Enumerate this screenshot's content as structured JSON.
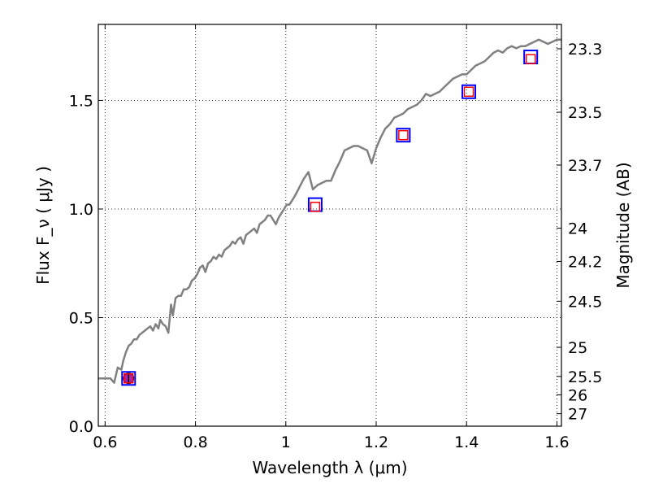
{
  "chart_data": {
    "type": "line",
    "xlabel": "Wavelength  λ (μm)",
    "ylabel": "Flux  F_ν  ( μJy )",
    "y2label": "Magnitude (AB)",
    "xlim": [
      0.585,
      1.61
    ],
    "ylim": [
      0.0,
      1.85
    ],
    "grid": true,
    "x_ticks": [
      0.6,
      0.8,
      1.0,
      1.2,
      1.4,
      1.6
    ],
    "x_tick_labels": [
      "0.6",
      "0.8",
      "1",
      "1.2",
      "1.4",
      "1.6"
    ],
    "y_ticks": [
      0.0,
      0.5,
      1.0,
      1.5
    ],
    "y_tick_labels": [
      "0.0",
      "0.5",
      "1.0",
      "1.5"
    ],
    "y2_ticks": [
      23.3,
      23.5,
      23.7,
      24,
      24.2,
      24.5,
      25,
      25.5,
      26,
      27
    ],
    "y2_tick_labels": [
      "23.3",
      "23.5",
      "23.7",
      "24",
      "24.2",
      "24.5",
      "25",
      "25.5",
      "26",
      "27"
    ],
    "colors": {
      "model": "#808080",
      "model_photometry": "#ff0000",
      "observed": "#0000ff",
      "detection_fill": "#aa22aa"
    },
    "series": [
      {
        "type": "line",
        "x": [
          0.585,
          0.6,
          0.612,
          0.62,
          0.628,
          0.636,
          0.64,
          0.646,
          0.652,
          0.658,
          0.664,
          0.67,
          0.676,
          0.682,
          0.688,
          0.694,
          0.7,
          0.706,
          0.712,
          0.718,
          0.722,
          0.728,
          0.734,
          0.74,
          0.746,
          0.75,
          0.756,
          0.762,
          0.768,
          0.774,
          0.78,
          0.786,
          0.792,
          0.798,
          0.804,
          0.81,
          0.816,
          0.822,
          0.828,
          0.834,
          0.84,
          0.846,
          0.852,
          0.858,
          0.864,
          0.87,
          0.876,
          0.882,
          0.888,
          0.894,
          0.9,
          0.906,
          0.912,
          0.918,
          0.924,
          0.93,
          0.936,
          0.942,
          0.948,
          0.954,
          0.96,
          0.966,
          0.972,
          0.978,
          0.984,
          0.99,
          0.996,
          1.002,
          1.008,
          1.014,
          1.02,
          1.03,
          1.04,
          1.05,
          1.06,
          1.07,
          1.08,
          1.09,
          1.1,
          1.11,
          1.12,
          1.13,
          1.14,
          1.15,
          1.16,
          1.17,
          1.18,
          1.19,
          1.2,
          1.21,
          1.22,
          1.23,
          1.24,
          1.25,
          1.26,
          1.27,
          1.28,
          1.29,
          1.3,
          1.31,
          1.32,
          1.33,
          1.34,
          1.35,
          1.36,
          1.37,
          1.38,
          1.39,
          1.4,
          1.41,
          1.42,
          1.43,
          1.44,
          1.45,
          1.46,
          1.47,
          1.48,
          1.49,
          1.5,
          1.51,
          1.52,
          1.53,
          1.54,
          1.55,
          1.56,
          1.57,
          1.58,
          1.59,
          1.6,
          1.61
        ],
        "y": [
          0.22,
          0.22,
          0.22,
          0.2,
          0.27,
          0.26,
          0.3,
          0.34,
          0.37,
          0.38,
          0.4,
          0.4,
          0.42,
          0.43,
          0.44,
          0.45,
          0.46,
          0.44,
          0.47,
          0.45,
          0.49,
          0.47,
          0.46,
          0.43,
          0.56,
          0.51,
          0.59,
          0.6,
          0.6,
          0.63,
          0.63,
          0.64,
          0.67,
          0.68,
          0.7,
          0.73,
          0.74,
          0.71,
          0.75,
          0.76,
          0.78,
          0.77,
          0.79,
          0.78,
          0.81,
          0.82,
          0.83,
          0.85,
          0.84,
          0.86,
          0.87,
          0.84,
          0.88,
          0.89,
          0.9,
          0.91,
          0.89,
          0.93,
          0.94,
          0.95,
          0.97,
          0.97,
          0.95,
          0.93,
          0.96,
          0.98,
          1.0,
          1.02,
          1.02,
          1.04,
          1.06,
          1.1,
          1.14,
          1.17,
          1.09,
          1.11,
          1.12,
          1.13,
          1.13,
          1.18,
          1.22,
          1.27,
          1.28,
          1.29,
          1.29,
          1.28,
          1.27,
          1.21,
          1.28,
          1.33,
          1.37,
          1.39,
          1.42,
          1.43,
          1.44,
          1.46,
          1.47,
          1.48,
          1.5,
          1.53,
          1.52,
          1.53,
          1.54,
          1.56,
          1.58,
          1.6,
          1.61,
          1.62,
          1.62,
          1.64,
          1.66,
          1.67,
          1.68,
          1.7,
          1.72,
          1.73,
          1.72,
          1.74,
          1.75,
          1.74,
          1.75,
          1.75,
          1.76,
          1.77,
          1.78,
          1.77,
          1.76,
          1.77,
          1.78,
          1.78
        ]
      },
      {
        "type": "scatter",
        "marker": "square",
        "x": [
          0.652,
          1.065,
          1.26,
          1.405,
          1.542
        ],
        "y": [
          0.22,
          1.02,
          1.34,
          1.54,
          1.7
        ]
      },
      {
        "type": "scatter",
        "marker": "square",
        "x": [
          0.652,
          1.065,
          1.26,
          1.405,
          1.542
        ],
        "y": [
          0.22,
          1.01,
          1.34,
          1.54,
          1.69
        ]
      },
      {
        "type": "errorbar",
        "marker": "circle",
        "x": [
          0.652
        ],
        "y": [
          0.22
        ],
        "yerr": [
          0.02
        ]
      }
    ]
  }
}
